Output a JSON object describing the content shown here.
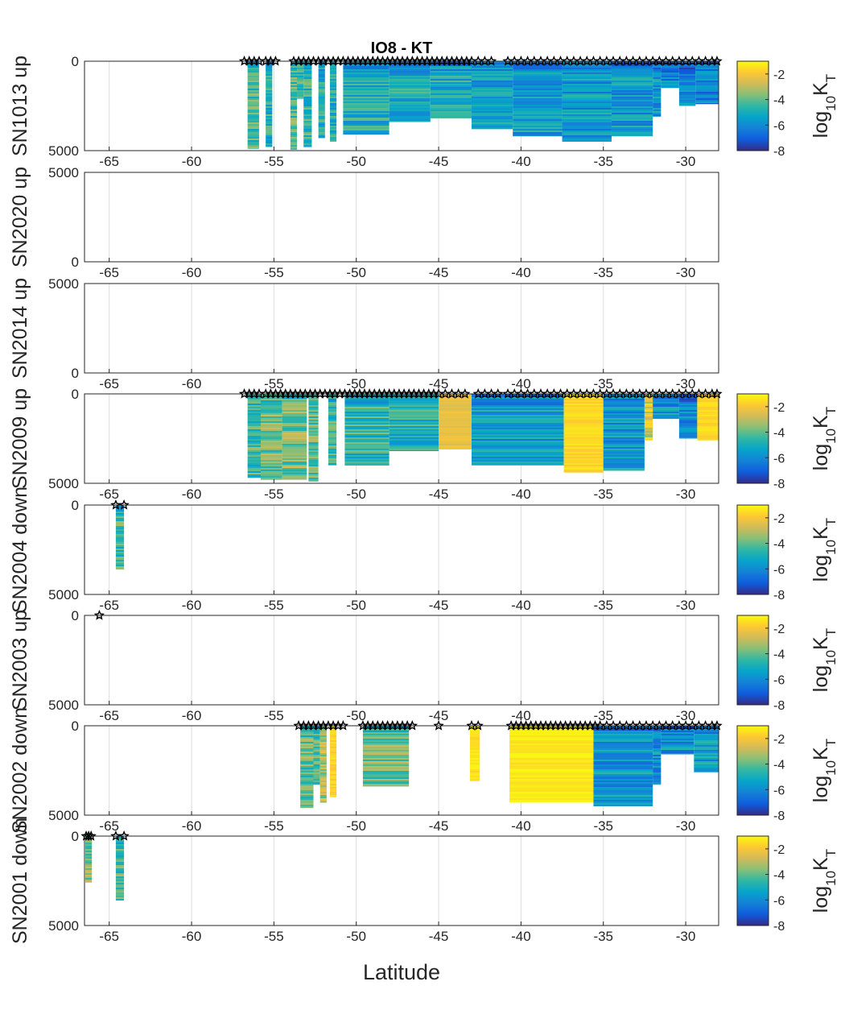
{
  "chart_data": {
    "type": "heatmap",
    "title": "IO8  -  KT",
    "xlabel": "Latitude",
    "xlim": [
      -66.5,
      -28
    ],
    "xticks": [
      -65,
      -60,
      -55,
      -50,
      -45,
      -40,
      -35,
      -30
    ],
    "xtick_labels": [
      "-65",
      "-60",
      "-55",
      "-50",
      "-45",
      "-40",
      "-35",
      "-30"
    ],
    "ylim": [
      0,
      5000
    ],
    "colorbar": {
      "label_base": "log",
      "label_sub1": "10",
      "label_main": "K",
      "label_sub2": "T",
      "clim": [
        -8,
        -1
      ],
      "ticks": [
        -2,
        -4,
        -6,
        -8
      ],
      "tick_labels": [
        "-2",
        "-4",
        "-6",
        "-8"
      ],
      "colors": [
        "#352a87",
        "#0f5cdd",
        "#1481d6",
        "#06a4ca",
        "#2eb7a4",
        "#87bf77",
        "#d1bb59",
        "#fec832",
        "#f9fb0e"
      ]
    },
    "panels": [
      {
        "ylabel": "SN1013 up",
        "yticks": [
          "0",
          "5000"
        ],
        "yreversed": true,
        "has_colorbar": true,
        "stations": [
          -56.8,
          -56.5,
          -56.2,
          -55.9,
          -55.5,
          -55.2,
          -54.9,
          -53.8,
          -53.5,
          -53.2,
          -52.9,
          -52.6,
          -52.3,
          -52,
          -51.7,
          -51.4,
          -51.1,
          -50.8,
          -50.5,
          -50.2,
          -49.9,
          -49.6,
          -49.3,
          -49,
          -48.7,
          -48.4,
          -48.1,
          -47.8,
          -47.5,
          -47.2,
          -46.9,
          -46.6,
          -46.3,
          -46,
          -45.7,
          -45.4,
          -45.1,
          -44.8,
          -44.5,
          -44.2,
          -43.9,
          -43.6,
          -43.3,
          -43,
          -42.6,
          -42.2,
          -41.8,
          -40.8,
          -40.4,
          -40,
          -39.6,
          -39.2,
          -38.8,
          -38.4,
          -38,
          -37.6,
          -37.2,
          -36.8,
          -36.4,
          -36,
          -35.6,
          -35.2,
          -34.8,
          -34.4,
          -34,
          -33.6,
          -33.2,
          -32.8,
          -32.4,
          -32,
          -31.6,
          -31.2,
          -30.8,
          -30.4,
          -30,
          -29.6,
          -29.2,
          -28.8,
          -28.4,
          -28.1
        ],
        "columns": [
          {
            "lat0": -56.6,
            "lat1": -55.9,
            "depth0": 0,
            "depth1": 4900,
            "level": -4.3
          },
          {
            "lat0": -55.5,
            "lat1": -55.1,
            "depth0": 0,
            "depth1": 4800,
            "level": -4.8
          },
          {
            "lat0": -54.0,
            "lat1": -53.6,
            "depth0": 0,
            "depth1": 4950,
            "level": -4.2
          },
          {
            "lat0": -53.6,
            "lat1": -53.2,
            "depth0": 0,
            "depth1": 2100,
            "level": -4.5
          },
          {
            "lat0": -53.2,
            "lat1": -52.7,
            "depth0": 0,
            "depth1": 4800,
            "level": -4.6
          },
          {
            "lat0": -52.3,
            "lat1": -51.9,
            "depth0": 0,
            "depth1": 4300,
            "level": -5.0
          },
          {
            "lat0": -51.6,
            "lat1": -51.2,
            "depth0": 0,
            "depth1": 4500,
            "level": -4.9
          },
          {
            "lat0": -50.8,
            "lat1": -48.0,
            "depth0": 0,
            "depth1": 4100,
            "level": -5.0
          },
          {
            "lat0": -48.0,
            "lat1": -45.5,
            "depth0": 0,
            "depth1": 3400,
            "level": -5.1
          },
          {
            "lat0": -45.5,
            "lat1": -43.0,
            "depth0": 0,
            "depth1": 3200,
            "level": -5.1
          },
          {
            "lat0": -43.0,
            "lat1": -40.5,
            "depth0": 0,
            "depth1": 3800,
            "level": -5.4
          },
          {
            "lat0": -40.5,
            "lat1": -37.5,
            "depth0": 0,
            "depth1": 4200,
            "level": -5.5
          },
          {
            "lat0": -37.5,
            "lat1": -34.5,
            "depth0": 0,
            "depth1": 4500,
            "level": -5.6
          },
          {
            "lat0": -34.5,
            "lat1": -32.0,
            "depth0": 0,
            "depth1": 4200,
            "level": -5.6
          },
          {
            "lat0": -32.0,
            "lat1": -31.5,
            "depth0": 0,
            "depth1": 3100,
            "level": -5.8
          },
          {
            "lat0": -31.5,
            "lat1": -30.4,
            "depth0": 0,
            "depth1": 1500,
            "level": -6.0
          },
          {
            "lat0": -30.4,
            "lat1": -29.4,
            "depth0": 0,
            "depth1": 2500,
            "level": -6.0
          },
          {
            "lat0": -29.4,
            "lat1": -28.0,
            "depth0": 0,
            "depth1": 2400,
            "level": -6.1
          }
        ]
      },
      {
        "ylabel": "SN2020 up",
        "yticks": [
          "5000",
          "0"
        ],
        "yreversed": false,
        "has_colorbar": false,
        "stations": [],
        "columns": []
      },
      {
        "ylabel": "SN2014 up",
        "yticks": [
          "5000",
          "0"
        ],
        "yreversed": false,
        "has_colorbar": false,
        "stations": [],
        "columns": []
      },
      {
        "ylabel": "SN2009 up",
        "yticks": [
          "0",
          "5000"
        ],
        "yreversed": true,
        "has_colorbar": true,
        "stations": [
          -56.8,
          -56.5,
          -56.2,
          -55.9,
          -55.5,
          -55.2,
          -54.9,
          -54.6,
          -54.3,
          -54,
          -53.7,
          -53.4,
          -53.1,
          -52.8,
          -52.5,
          -52.2,
          -51.9,
          -51.6,
          -51.3,
          -51,
          -50.7,
          -50.4,
          -50.1,
          -49.8,
          -49.5,
          -49.2,
          -48.9,
          -48.6,
          -48.3,
          -48,
          -47.7,
          -47.4,
          -47.1,
          -46.8,
          -46.5,
          -46.2,
          -45.9,
          -45.6,
          -45.3,
          -45,
          -44.6,
          -44.2,
          -43.8,
          -43.4,
          -42.6,
          -42.2,
          -41.8,
          -41.4,
          -40.8,
          -40.4,
          -40,
          -39.6,
          -39.2,
          -38.8,
          -38.4,
          -38,
          -37.6,
          -37.2,
          -36.8,
          -36.4,
          -36,
          -35.6,
          -35.2,
          -34.8,
          -34.4,
          -34,
          -33.6,
          -33.2,
          -32.8,
          -32.4,
          -32,
          -31.6,
          -31.2,
          -30.8,
          -30.4,
          -30,
          -29.6,
          -29.2,
          -28.8,
          -28.4,
          -28.1
        ],
        "columns": [
          {
            "lat0": -56.6,
            "lat1": -55.8,
            "depth0": 0,
            "depth1": 4700,
            "level": -4.3
          },
          {
            "lat0": -55.8,
            "lat1": -54.5,
            "depth0": 0,
            "depth1": 4800,
            "level": -3.8
          },
          {
            "lat0": -54.5,
            "lat1": -53.0,
            "depth0": 0,
            "depth1": 4800,
            "level": -3.7
          },
          {
            "lat0": -52.9,
            "lat1": -52.3,
            "depth0": 0,
            "depth1": 4900,
            "level": -4.0
          },
          {
            "lat0": -51.7,
            "lat1": -51.2,
            "depth0": 0,
            "depth1": 4000,
            "level": -4.4
          },
          {
            "lat0": -50.7,
            "lat1": -48.0,
            "depth0": 0,
            "depth1": 4000,
            "level": -4.6
          },
          {
            "lat0": -48.0,
            "lat1": -45.0,
            "depth0": 0,
            "depth1": 3200,
            "level": -4.8
          },
          {
            "lat0": -45.0,
            "lat1": -43.0,
            "depth0": 0,
            "depth1": 3100,
            "level": -2.3
          },
          {
            "lat0": -43.0,
            "lat1": -37.4,
            "depth0": 0,
            "depth1": 4000,
            "level": -5.6
          },
          {
            "lat0": -37.4,
            "lat1": -35.0,
            "depth0": 0,
            "depth1": 4400,
            "level": -1.6
          },
          {
            "lat0": -35.0,
            "lat1": -32.5,
            "depth0": 0,
            "depth1": 4300,
            "level": -5.6
          },
          {
            "lat0": -32.5,
            "lat1": -32.0,
            "depth0": 0,
            "depth1": 2600,
            "level": -2.5
          },
          {
            "lat0": -32.0,
            "lat1": -30.4,
            "depth0": 0,
            "depth1": 1400,
            "level": -5.8
          },
          {
            "lat0": -30.4,
            "lat1": -29.3,
            "depth0": 0,
            "depth1": 2500,
            "level": -5.8
          },
          {
            "lat0": -29.3,
            "lat1": -28.0,
            "depth0": 0,
            "depth1": 2600,
            "level": -1.6
          }
        ]
      },
      {
        "ylabel": "SN2004 down",
        "yticks": [
          "0",
          "5000"
        ],
        "yreversed": true,
        "has_colorbar": true,
        "stations": [
          -64.6,
          -64.1
        ],
        "columns": [
          {
            "lat0": -64.6,
            "lat1": -64.1,
            "depth0": 0,
            "depth1": 3600,
            "level": -4.3
          }
        ]
      },
      {
        "ylabel": "SN2003 up",
        "yticks": [
          "0",
          "5000"
        ],
        "yreversed": true,
        "has_colorbar": true,
        "stations": [
          -65.6
        ],
        "columns": []
      },
      {
        "ylabel": "SN2002 down",
        "yticks": [
          "0",
          "5000"
        ],
        "yreversed": true,
        "has_colorbar": true,
        "stations": [
          -53.5,
          -53.2,
          -52.9,
          -52.6,
          -52.3,
          -52,
          -51.7,
          -51.4,
          -51.1,
          -50.8,
          -49.6,
          -49.3,
          -49,
          -48.7,
          -48.4,
          -48.1,
          -47.8,
          -47.5,
          -47.2,
          -46.9,
          -46.6,
          -45,
          -43,
          -42.6,
          -40.6,
          -40.3,
          -40,
          -39.7,
          -39.4,
          -39.1,
          -38.8,
          -38.5,
          -38.2,
          -37.9,
          -37.6,
          -37.3,
          -37,
          -36.7,
          -36.4,
          -36.1,
          -35.8,
          -35.5,
          -35.2,
          -34.8,
          -34.4,
          -34,
          -33.6,
          -33.2,
          -32.8,
          -32.4,
          -32,
          -31.6,
          -31.2,
          -30.8,
          -30.4,
          -30,
          -29.6,
          -29.2,
          -28.8,
          -28.4,
          -28.1
        ],
        "columns": [
          {
            "lat0": -53.4,
            "lat1": -52.6,
            "depth0": 0,
            "depth1": 4600,
            "level": -4.0
          },
          {
            "lat0": -52.6,
            "lat1": -52.2,
            "depth0": 0,
            "depth1": 3300,
            "level": -4.3
          },
          {
            "lat0": -52.2,
            "lat1": -51.8,
            "depth0": 0,
            "depth1": 4300,
            "level": -3.2
          },
          {
            "lat0": -51.6,
            "lat1": -51.2,
            "depth0": 0,
            "depth1": 4000,
            "level": -1.7
          },
          {
            "lat0": -49.6,
            "lat1": -46.8,
            "depth0": 0,
            "depth1": 3400,
            "level": -3.8
          },
          {
            "lat0": -43.1,
            "lat1": -42.5,
            "depth0": 0,
            "depth1": 3100,
            "level": -1.4
          },
          {
            "lat0": -40.7,
            "lat1": -35.6,
            "depth0": 0,
            "depth1": 4300,
            "level": -1.3
          },
          {
            "lat0": -35.6,
            "lat1": -32.0,
            "depth0": 0,
            "depth1": 4500,
            "level": -5.6
          },
          {
            "lat0": -32.0,
            "lat1": -31.5,
            "depth0": 0,
            "depth1": 3300,
            "level": -5.8
          },
          {
            "lat0": -31.5,
            "lat1": -29.5,
            "depth0": 0,
            "depth1": 1600,
            "level": -5.7
          },
          {
            "lat0": -29.5,
            "lat1": -28.0,
            "depth0": 0,
            "depth1": 2600,
            "level": -5.5
          }
        ]
      },
      {
        "ylabel": "SN2001 down",
        "yticks": [
          "0",
          "5000"
        ],
        "yreversed": true,
        "has_colorbar": true,
        "stations": [
          -66.4,
          -66.25,
          -66.1,
          -64.6,
          -64.1
        ],
        "columns": [
          {
            "lat0": -66.45,
            "lat1": -66.05,
            "depth0": 0,
            "depth1": 2600,
            "level": -3.8
          },
          {
            "lat0": -64.6,
            "lat1": -64.1,
            "depth0": 0,
            "depth1": 3600,
            "level": -4.2
          }
        ]
      }
    ]
  }
}
